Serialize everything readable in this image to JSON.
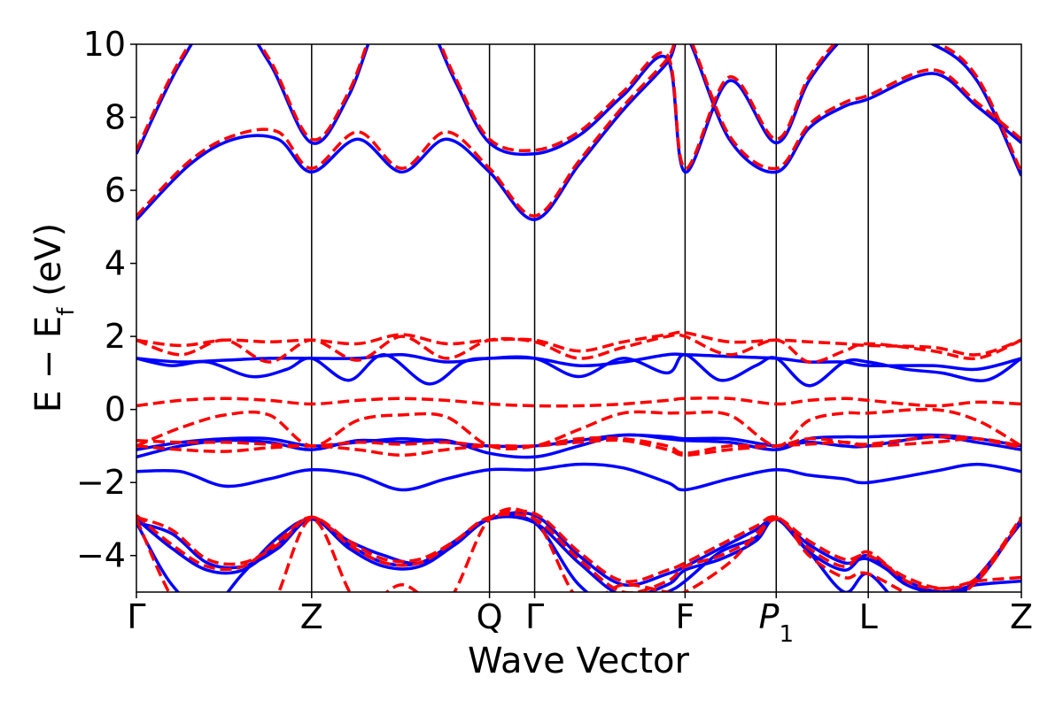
{
  "chart_data": {
    "type": "line",
    "xlabel": "Wave Vector",
    "ylabel": "E − E_f (eV)",
    "ylabel_parts": {
      "a": "E − E",
      "sub": "f",
      "b": " (eV)"
    },
    "ylim": [
      -5,
      10
    ],
    "xlim": [
      0,
      1
    ],
    "yticks": [
      10,
      8,
      6,
      4,
      2,
      0,
      -2,
      -4
    ],
    "ytick_labels": [
      "10",
      "8",
      "6",
      "4",
      "2",
      "0",
      "−2",
      "−4"
    ],
    "kpoints": [
      {
        "label": "Γ",
        "x": 0.0
      },
      {
        "label": "Z",
        "x": 0.198
      },
      {
        "label": "Q",
        "x": 0.399
      },
      {
        "label": "Γ",
        "x": 0.45
      },
      {
        "label": "F",
        "x": 0.62
      },
      {
        "label": "P",
        "sub": "1",
        "italic": true,
        "x": 0.723
      },
      {
        "label": "L",
        "x": 0.827
      },
      {
        "label": "Z",
        "x": 1.0
      }
    ],
    "colors": {
      "blue": "#0000ff",
      "red": "#ff0000",
      "frame": "#000000"
    },
    "series": [
      {
        "color": "blue",
        "style": "solid",
        "x": [
          0,
          0.06,
          0.11,
          0.16,
          0.198,
          0.25,
          0.3,
          0.35,
          0.399,
          0.45,
          0.5,
          0.55,
          0.6,
          0.62,
          0.67,
          0.723,
          0.76,
          0.8,
          0.827,
          0.9,
          0.95,
          1.0
        ],
        "y": [
          5.2,
          6.7,
          7.4,
          7.4,
          6.5,
          7.4,
          6.5,
          7.4,
          6.5,
          5.2,
          6.7,
          8.2,
          9.5,
          10.3,
          7.4,
          6.5,
          7.7,
          8.3,
          8.5,
          9.2,
          8.3,
          7.3
        ]
      },
      {
        "color": "blue",
        "style": "solid",
        "x": [
          0,
          0.05,
          0.1,
          0.15,
          0.198,
          0.24,
          0.28,
          0.32,
          0.36,
          0.399,
          0.45,
          0.5,
          0.55,
          0.6,
          0.62,
          0.67,
          0.723,
          0.76,
          0.8,
          0.827,
          0.9,
          0.95,
          1.0
        ],
        "y": [
          7.0,
          9.5,
          11.0,
          9.5,
          7.3,
          8.6,
          11.0,
          11.0,
          9.0,
          7.3,
          7.0,
          7.5,
          8.6,
          9.6,
          6.5,
          9.0,
          7.3,
          9.0,
          10.2,
          10.5,
          10.0,
          9.0,
          6.4
        ]
      },
      {
        "color": "blue",
        "style": "solid",
        "x": [
          0,
          0.04,
          0.08,
          0.13,
          0.17,
          0.198,
          0.24,
          0.28,
          0.33,
          0.37,
          0.399,
          0.45,
          0.5,
          0.55,
          0.6,
          0.62,
          0.66,
          0.7,
          0.723,
          0.76,
          0.8,
          0.827,
          0.87,
          0.91,
          0.96,
          1.0
        ],
        "y": [
          1.4,
          1.2,
          1.3,
          0.9,
          1.1,
          1.4,
          0.8,
          1.5,
          0.7,
          1.3,
          1.4,
          1.4,
          0.9,
          1.4,
          1.0,
          1.5,
          0.8,
          1.2,
          1.4,
          0.65,
          1.3,
          1.3,
          1.1,
          1.0,
          0.8,
          1.4
        ]
      },
      {
        "color": "blue",
        "style": "solid",
        "x": [
          0,
          0.05,
          0.1,
          0.15,
          0.198,
          0.25,
          0.3,
          0.35,
          0.399,
          0.45,
          0.5,
          0.55,
          0.6,
          0.62,
          0.67,
          0.723,
          0.76,
          0.8,
          0.827,
          0.9,
          0.95,
          1.0
        ],
        "y": [
          1.4,
          1.3,
          1.35,
          1.4,
          1.4,
          1.4,
          1.5,
          1.3,
          1.4,
          1.4,
          1.2,
          1.3,
          1.5,
          1.5,
          1.45,
          1.4,
          1.3,
          1.3,
          1.2,
          1.2,
          1.1,
          1.4
        ]
      },
      {
        "color": "blue",
        "style": "solid",
        "x": [
          0,
          0.05,
          0.1,
          0.15,
          0.198,
          0.25,
          0.3,
          0.35,
          0.399,
          0.45,
          0.5,
          0.55,
          0.6,
          0.62,
          0.67,
          0.723,
          0.76,
          0.8,
          0.827,
          0.9,
          0.95,
          1.0
        ],
        "y": [
          -1.3,
          -1.0,
          -0.85,
          -0.9,
          -1.1,
          -0.85,
          -0.9,
          -0.85,
          -1.2,
          -1.3,
          -1.0,
          -0.7,
          -0.8,
          -0.85,
          -0.9,
          -1.1,
          -0.8,
          -0.75,
          -0.75,
          -0.7,
          -0.8,
          -1.0
        ]
      },
      {
        "color": "blue",
        "style": "solid",
        "x": [
          0,
          0.05,
          0.1,
          0.15,
          0.198,
          0.25,
          0.3,
          0.35,
          0.399,
          0.45,
          0.5,
          0.55,
          0.6,
          0.62,
          0.67,
          0.723,
          0.76,
          0.8,
          0.827,
          0.9,
          0.95,
          1.0
        ],
        "y": [
          -1.1,
          -0.9,
          -0.8,
          -0.8,
          -1.0,
          -0.9,
          -0.8,
          -0.9,
          -1.0,
          -1.0,
          -0.85,
          -0.7,
          -0.75,
          -0.8,
          -0.8,
          -1.0,
          -0.9,
          -1.0,
          -1.0,
          -0.75,
          -0.9,
          -1.1
        ]
      },
      {
        "color": "blue",
        "style": "solid",
        "x": [
          0,
          0.05,
          0.1,
          0.15,
          0.198,
          0.25,
          0.3,
          0.35,
          0.399,
          0.45,
          0.5,
          0.55,
          0.6,
          0.62,
          0.67,
          0.723,
          0.76,
          0.8,
          0.827,
          0.9,
          0.95,
          1.0
        ],
        "y": [
          -1.7,
          -1.7,
          -2.1,
          -1.9,
          -1.65,
          -1.8,
          -2.2,
          -1.9,
          -1.65,
          -1.65,
          -1.5,
          -1.6,
          -2.0,
          -2.2,
          -1.9,
          -1.65,
          -1.8,
          -1.9,
          -2.0,
          -1.7,
          -1.5,
          -1.7
        ]
      },
      {
        "color": "blue",
        "style": "solid",
        "x": [
          0,
          0.04,
          0.08,
          0.12,
          0.16,
          0.198,
          0.24,
          0.28,
          0.32,
          0.36,
          0.399,
          0.45,
          0.5,
          0.55,
          0.6,
          0.62,
          0.66,
          0.7,
          0.723,
          0.76,
          0.8,
          0.827,
          0.87,
          0.91,
          0.95,
          1.0
        ],
        "y": [
          -3.1,
          -3.4,
          -4.2,
          -4.3,
          -3.8,
          -3.0,
          -3.8,
          -4.3,
          -4.3,
          -3.7,
          -3.0,
          -2.9,
          -4.0,
          -4.8,
          -4.5,
          -4.3,
          -3.8,
          -3.3,
          -3.0,
          -3.7,
          -4.2,
          -4.1,
          -4.7,
          -5.0,
          -4.8,
          -4.7
        ]
      },
      {
        "color": "blue",
        "style": "solid",
        "x": [
          0,
          0.04,
          0.08,
          0.12,
          0.16,
          0.198,
          0.24,
          0.28,
          0.32,
          0.36,
          0.399,
          0.45,
          0.5,
          0.55,
          0.6,
          0.62,
          0.66,
          0.7,
          0.723,
          0.76,
          0.8,
          0.827,
          0.87,
          0.91,
          0.95,
          1.0
        ],
        "y": [
          -3.0,
          -3.8,
          -4.4,
          -4.4,
          -3.7,
          -3.0,
          -3.7,
          -4.2,
          -4.2,
          -3.7,
          -3.0,
          -3.1,
          -4.2,
          -5.1,
          -4.8,
          -4.4,
          -4.1,
          -3.6,
          -3.0,
          -3.9,
          -4.4,
          -4.0,
          -4.8,
          -5.0,
          -4.7,
          -3.0
        ]
      },
      {
        "color": "blue",
        "style": "solid",
        "x": [
          0,
          0.04,
          0.08,
          0.12,
          0.16,
          0.198,
          0.24,
          0.28,
          0.32,
          0.36,
          0.399,
          0.45,
          0.5,
          0.55,
          0.6,
          0.62,
          0.66,
          0.7,
          0.723,
          0.76,
          0.8,
          0.827,
          0.87,
          0.91,
          0.95,
          1.0
        ],
        "y": [
          -3.1,
          -4.8,
          -5.5,
          -4.5,
          -3.5,
          -3.0,
          -3.6,
          -4.0,
          -4.2,
          -3.6,
          -3.0,
          -3.1,
          -4.8,
          -5.5,
          -5.0,
          -4.7,
          -3.9,
          -3.5,
          -3.0,
          -3.9,
          -5.0,
          -4.5,
          -5.5,
          -5.5,
          -4.6,
          -3.1
        ]
      },
      {
        "color": "red",
        "style": "dashed",
        "x": [
          0,
          0.06,
          0.11,
          0.16,
          0.198,
          0.25,
          0.3,
          0.35,
          0.399,
          0.45,
          0.5,
          0.55,
          0.6,
          0.62,
          0.67,
          0.723,
          0.76,
          0.8,
          0.827,
          0.9,
          0.95,
          1.0
        ],
        "y": [
          5.3,
          6.8,
          7.5,
          7.6,
          6.6,
          7.6,
          6.6,
          7.6,
          6.6,
          5.3,
          6.8,
          8.3,
          9.6,
          10.4,
          7.5,
          6.6,
          7.8,
          8.4,
          8.6,
          9.3,
          8.4,
          7.4
        ]
      },
      {
        "color": "red",
        "style": "dashed",
        "x": [
          0,
          0.05,
          0.1,
          0.15,
          0.198,
          0.24,
          0.28,
          0.32,
          0.36,
          0.399,
          0.45,
          0.5,
          0.55,
          0.6,
          0.62,
          0.67,
          0.723,
          0.76,
          0.8,
          0.827,
          0.9,
          0.95,
          1.0
        ],
        "y": [
          7.1,
          9.6,
          11.1,
          9.6,
          7.4,
          8.7,
          11.1,
          11.1,
          9.1,
          7.4,
          7.1,
          7.6,
          8.7,
          9.7,
          6.6,
          9.1,
          7.4,
          9.1,
          10.3,
          10.6,
          10.1,
          9.1,
          6.5
        ]
      },
      {
        "color": "red",
        "style": "dashed",
        "x": [
          0,
          0.05,
          0.1,
          0.15,
          0.198,
          0.25,
          0.3,
          0.35,
          0.399,
          0.45,
          0.5,
          0.55,
          0.6,
          0.62,
          0.67,
          0.723,
          0.76,
          0.8,
          0.827,
          0.9,
          0.95,
          1.0
        ],
        "y": [
          1.9,
          1.75,
          1.9,
          1.85,
          1.9,
          1.8,
          2.05,
          1.8,
          1.9,
          1.9,
          1.6,
          1.85,
          2.05,
          2.1,
          1.85,
          1.9,
          1.85,
          1.8,
          1.75,
          1.7,
          1.5,
          1.9
        ]
      },
      {
        "color": "red",
        "style": "dashed",
        "x": [
          0,
          0.05,
          0.1,
          0.15,
          0.198,
          0.25,
          0.3,
          0.35,
          0.399,
          0.45,
          0.5,
          0.55,
          0.6,
          0.62,
          0.67,
          0.723,
          0.76,
          0.8,
          0.827,
          0.9,
          0.95,
          1.0
        ],
        "y": [
          1.9,
          1.5,
          1.9,
          1.3,
          1.9,
          1.35,
          2.0,
          1.4,
          1.9,
          1.85,
          1.4,
          1.7,
          2.0,
          2.0,
          1.5,
          1.9,
          1.3,
          1.6,
          1.8,
          1.6,
          1.4,
          1.9
        ]
      },
      {
        "color": "red",
        "style": "dashed",
        "x": [
          0,
          0.05,
          0.1,
          0.15,
          0.198,
          0.25,
          0.3,
          0.35,
          0.399,
          0.45,
          0.5,
          0.55,
          0.6,
          0.62,
          0.67,
          0.723,
          0.76,
          0.8,
          0.827,
          0.9,
          0.95,
          1.0
        ],
        "y": [
          0.1,
          0.25,
          0.3,
          0.25,
          0.15,
          0.25,
          0.3,
          0.25,
          0.15,
          0.1,
          0.1,
          0.15,
          0.25,
          0.3,
          0.3,
          0.15,
          0.25,
          0.3,
          0.25,
          0.1,
          0.2,
          0.15
        ]
      },
      {
        "color": "red",
        "style": "dashed",
        "x": [
          0,
          0.05,
          0.1,
          0.15,
          0.198,
          0.25,
          0.3,
          0.35,
          0.399,
          0.45,
          0.5,
          0.55,
          0.6,
          0.62,
          0.67,
          0.723,
          0.76,
          0.8,
          0.827,
          0.9,
          0.95,
          1.0
        ],
        "y": [
          -1.0,
          -0.5,
          -0.15,
          -0.15,
          -1.0,
          -0.3,
          -0.15,
          -0.2,
          -1.0,
          -1.0,
          -0.55,
          -0.1,
          -0.1,
          -0.1,
          -0.15,
          -1.0,
          -0.3,
          -0.1,
          -0.1,
          0.0,
          -0.3,
          -1.0
        ]
      },
      {
        "color": "red",
        "style": "dashed",
        "x": [
          0,
          0.05,
          0.1,
          0.15,
          0.198,
          0.25,
          0.3,
          0.35,
          0.399,
          0.45,
          0.5,
          0.55,
          0.6,
          0.62,
          0.67,
          0.723,
          0.76,
          0.8,
          0.827,
          0.9,
          0.95,
          1.0
        ],
        "y": [
          -0.85,
          -0.9,
          -0.9,
          -0.95,
          -1.0,
          -0.9,
          -0.95,
          -0.9,
          -1.0,
          -1.0,
          -0.8,
          -0.8,
          -1.0,
          -1.2,
          -1.0,
          -1.0,
          -0.8,
          -0.9,
          -1.0,
          -0.9,
          -0.8,
          -1.0
        ]
      },
      {
        "color": "red",
        "style": "dashed",
        "x": [
          0,
          0.05,
          0.1,
          0.15,
          0.198,
          0.25,
          0.3,
          0.35,
          0.399,
          0.45,
          0.5,
          0.55,
          0.6,
          0.62,
          0.67,
          0.723,
          0.76,
          0.8,
          0.827,
          0.9,
          0.95,
          1.0
        ],
        "y": [
          -1.0,
          -1.1,
          -1.15,
          -1.05,
          -1.0,
          -1.1,
          -1.25,
          -1.1,
          -1.0,
          -1.0,
          -0.9,
          -0.85,
          -1.1,
          -1.25,
          -1.1,
          -1.0,
          -0.95,
          -0.9,
          -0.95,
          -0.75,
          -0.8,
          -1.05
        ]
      },
      {
        "color": "red",
        "style": "dashed",
        "x": [
          0,
          0.04,
          0.08,
          0.12,
          0.16,
          0.198,
          0.24,
          0.28,
          0.32,
          0.36,
          0.399,
          0.45,
          0.5,
          0.55,
          0.6,
          0.62,
          0.66,
          0.7,
          0.723,
          0.76,
          0.8,
          0.827,
          0.87,
          0.91,
          0.95,
          1.0
        ],
        "y": [
          -2.95,
          -3.3,
          -4.1,
          -4.2,
          -3.7,
          -2.95,
          -3.7,
          -4.2,
          -4.2,
          -3.6,
          -2.95,
          -2.85,
          -3.9,
          -4.7,
          -4.4,
          -4.2,
          -3.7,
          -3.2,
          -2.95,
          -3.6,
          -4.1,
          -4.0,
          -4.6,
          -4.9,
          -4.7,
          -4.6
        ]
      },
      {
        "color": "red",
        "style": "dashed",
        "x": [
          0,
          0.04,
          0.08,
          0.12,
          0.16,
          0.198,
          0.24,
          0.28,
          0.32,
          0.36,
          0.399,
          0.45,
          0.5,
          0.55,
          0.6,
          0.62,
          0.66,
          0.7,
          0.723,
          0.76,
          0.8,
          0.827,
          0.87,
          0.91,
          0.95,
          1.0
        ],
        "y": [
          -2.9,
          -3.7,
          -4.3,
          -4.3,
          -3.6,
          -2.95,
          -3.6,
          -4.1,
          -4.1,
          -3.6,
          -2.95,
          -3.0,
          -4.1,
          -5.0,
          -4.7,
          -4.3,
          -4.0,
          -3.5,
          -2.95,
          -3.8,
          -4.3,
          -3.9,
          -4.7,
          -4.9,
          -4.6,
          -2.95
        ]
      },
      {
        "color": "red",
        "style": "dashed",
        "x": [
          0,
          0.05,
          0.1,
          0.15,
          0.198,
          0.25,
          0.3,
          0.35,
          0.399,
          0.45,
          0.5,
          0.55,
          0.6,
          0.62,
          0.67,
          0.723,
          0.76,
          0.8,
          0.827,
          0.9,
          0.95,
          1.0
        ],
        "y": [
          -3.0,
          -5.5,
          -5.6,
          -5.5,
          -3.0,
          -5.3,
          -4.8,
          -5.3,
          -3.0,
          -3.0,
          -5.2,
          -4.8,
          -5.0,
          -5.0,
          -4.2,
          -3.0,
          -4.0,
          -4.6,
          -4.5,
          -5.3,
          -4.7,
          -3.0
        ]
      }
    ]
  }
}
